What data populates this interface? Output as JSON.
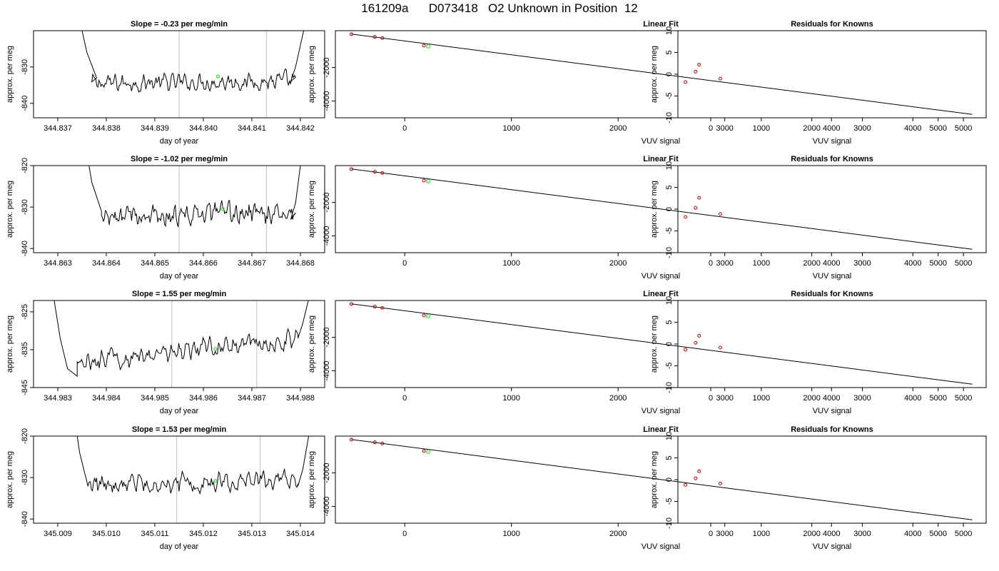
{
  "title": "161209a      D073418   O2 Unknown in Position  12",
  "colors": {
    "fit_line": "#000000",
    "known_points": "#cc0000",
    "unknown_point": "#33dd33",
    "window_lines": "#c8c8c8"
  },
  "chart_data": [
    {
      "type": "line",
      "title": "Slope =  -0.23  per meg/min",
      "xlabel": "day of year",
      "ylabel": "approx. per meg",
      "xlim": [
        344.8365,
        344.8425
      ],
      "ylim": [
        -844,
        -820
      ],
      "xticks": [
        "344.837",
        "344.838",
        "344.839",
        "344.840",
        "344.841",
        "344.842"
      ],
      "yticks": [
        "-840",
        "-830"
      ],
      "vlines": [
        344.8395,
        344.8413
      ],
      "trace": {
        "x_start": 344.8377,
        "x_end": 344.8419,
        "baseline": -834.5,
        "amp": 1.6,
        "left_shoulder": [
          [
            344.8373,
            -808
          ],
          [
            344.8376,
            -826
          ],
          [
            344.8378,
            -833
          ]
        ],
        "right_shoulder": [
          [
            344.8418,
            -834
          ],
          [
            344.8419,
            -830
          ],
          [
            344.8421,
            -818
          ],
          [
            344.8422,
            -808
          ]
        ],
        "points": 200,
        "trend": 0.6
      },
      "unknown_marker": {
        "x": 344.8403,
        "y": -832.6
      }
    },
    {
      "type": "scatter+line",
      "title": "Linear Fit",
      "xlabel": "VUV signal",
      "ylabel": "approx. per meg",
      "xlim": [
        -650,
        5450
      ],
      "ylim": [
        -5000,
        200
      ],
      "xticks": [
        "0",
        "1000",
        "2000",
        "3000",
        "4000",
        "5000"
      ],
      "yticks": [
        "-4000",
        "-2000"
      ],
      "fit": [
        [
          -500,
          0
        ],
        [
          5320,
          -4800
        ]
      ],
      "knowns": [
        [
          -500,
          -10
        ],
        [
          -280,
          -170
        ],
        [
          -210,
          -240
        ],
        [
          180,
          -690
        ]
      ],
      "unknown": [
        220,
        -730
      ]
    },
    {
      "type": "scatter",
      "title": "Residuals for Knowns",
      "xlabel": "VUV signal",
      "ylabel": "approx. per meg",
      "xlim": [
        -650,
        5450
      ],
      "ylim": [
        -10,
        10
      ],
      "xticks": [
        "0",
        "1000",
        "2000",
        "3000",
        "4000",
        "5000"
      ],
      "yticks": [
        "-10",
        "-5",
        "0",
        "5",
        "10"
      ],
      "points": [
        [
          -500,
          -1.8
        ],
        [
          -300,
          0.6
        ],
        [
          -230,
          2.2
        ],
        [
          190,
          -1.0
        ]
      ]
    },
    {
      "type": "line",
      "title": "Slope =  -1.02  per meg/min",
      "xlabel": "day of year",
      "ylabel": "approx. per meg",
      "xlim": [
        344.8625,
        344.8685
      ],
      "ylim": [
        -841,
        -820
      ],
      "xticks": [
        "344.863",
        "344.864",
        "344.865",
        "344.866",
        "344.867",
        "344.868"
      ],
      "yticks": [
        "-840",
        "-830",
        "-820"
      ],
      "vlines": [
        344.8655,
        344.8673
      ],
      "trace": {
        "x_start": 344.8639,
        "x_end": 344.8679,
        "baseline": -832.5,
        "amp": 1.7,
        "left_shoulder": [
          [
            344.8635,
            -810
          ],
          [
            344.8637,
            -824
          ],
          [
            344.8639,
            -831
          ]
        ],
        "right_shoulder": [
          [
            344.8678,
            -833
          ],
          [
            344.8679,
            -829
          ],
          [
            344.868,
            -820
          ],
          [
            344.8682,
            -810
          ]
        ],
        "points": 200,
        "trend": 1.2
      },
      "unknown_marker": {
        "x": 344.8664,
        "y": -830.5
      }
    },
    {
      "type": "scatter+line",
      "title": "Linear Fit",
      "xlabel": "VUV signal",
      "ylabel": "approx. per meg",
      "xlim": [
        -650,
        5450
      ],
      "ylim": [
        -5000,
        200
      ],
      "xticks": [
        "0",
        "1000",
        "2000",
        "3000",
        "4000",
        "5000"
      ],
      "yticks": [
        "-4000",
        "-2000"
      ],
      "fit": [
        [
          -500,
          0
        ],
        [
          5320,
          -4800
        ]
      ],
      "knowns": [
        [
          -500,
          -10
        ],
        [
          -280,
          -170
        ],
        [
          -210,
          -240
        ],
        [
          180,
          -690
        ]
      ],
      "unknown": [
        220,
        -730
      ]
    },
    {
      "type": "scatter",
      "title": "Residuals for Knowns",
      "xlabel": "VUV signal",
      "ylabel": "approx. per meg",
      "xlim": [
        -650,
        5450
      ],
      "ylim": [
        -10,
        10
      ],
      "xticks": [
        "0",
        "1000",
        "2000",
        "3000",
        "4000",
        "5000"
      ],
      "yticks": [
        "-10",
        "-5",
        "0",
        "5",
        "10"
      ],
      "points": [
        [
          -500,
          -1.8
        ],
        [
          -300,
          0.3
        ],
        [
          -230,
          2.6
        ],
        [
          190,
          -1.1
        ]
      ]
    },
    {
      "type": "line",
      "title": "Slope =  1.55  per meg/min",
      "xlabel": "day of year",
      "ylabel": "approx. per meg",
      "xlim": [
        344.9825,
        344.9885
      ],
      "ylim": [
        -845,
        -822
      ],
      "xticks": [
        "344.983",
        "344.984",
        "344.985",
        "344.986",
        "344.987",
        "344.988"
      ],
      "yticks": [
        "-845",
        "-835",
        "-825"
      ],
      "vlines": [
        344.98535,
        344.9871
      ],
      "trace": {
        "x_start": 344.9834,
        "x_end": 344.98795,
        "baseline": -838.5,
        "amp": 1.8,
        "left_shoulder": [
          [
            344.9829,
            -820
          ],
          [
            344.98305,
            -832
          ],
          [
            344.9832,
            -840
          ],
          [
            344.9834,
            -842
          ]
        ],
        "right_shoulder": [
          [
            344.98795,
            -832
          ],
          [
            344.98805,
            -828
          ],
          [
            344.9882,
            -820
          ]
        ],
        "points": 200,
        "trend": 6.5
      },
      "unknown_marker": {
        "x": 344.98625,
        "y": -834.8
      }
    },
    {
      "type": "scatter+line",
      "title": "Linear Fit",
      "xlabel": "VUV signal",
      "ylabel": "approx. per meg",
      "xlim": [
        -650,
        5450
      ],
      "ylim": [
        -5000,
        200
      ],
      "xticks": [
        "0",
        "1000",
        "2000",
        "3000",
        "4000",
        "5000"
      ],
      "yticks": [
        "-4000",
        "-2000"
      ],
      "fit": [
        [
          -500,
          0
        ],
        [
          5320,
          -4800
        ]
      ],
      "knowns": [
        [
          -500,
          -10
        ],
        [
          -280,
          -170
        ],
        [
          -210,
          -240
        ],
        [
          180,
          -690
        ]
      ],
      "unknown": [
        220,
        -730
      ]
    },
    {
      "type": "scatter",
      "title": "Residuals for Knowns",
      "xlabel": "VUV signal",
      "ylabel": "approx. per meg",
      "xlim": [
        -650,
        5450
      ],
      "ylim": [
        -10,
        10
      ],
      "xticks": [
        "0",
        "1000",
        "2000",
        "3000",
        "4000",
        "5000"
      ],
      "yticks": [
        "-10",
        "-5",
        "0",
        "5",
        "10"
      ],
      "points": [
        [
          -500,
          -1.3
        ],
        [
          -300,
          0.3
        ],
        [
          -230,
          1.9
        ],
        [
          190,
          -0.8
        ]
      ]
    },
    {
      "type": "line",
      "title": "Slope =  1.53  per meg/min",
      "xlabel": "day of year",
      "ylabel": "approx. per meg",
      "xlim": [
        345.0085,
        345.0145
      ],
      "ylim": [
        -841,
        -820
      ],
      "xticks": [
        "345.009",
        "345.010",
        "345.011",
        "345.012",
        "345.013",
        "345.014"
      ],
      "yticks": [
        "-840",
        "-830",
        "-820"
      ],
      "vlines": [
        345.01145,
        345.01317
      ],
      "trace": {
        "x_start": 345.00965,
        "x_end": 345.01395,
        "baseline": -832,
        "amp": 1.6,
        "left_shoulder": [
          [
            345.0093,
            -812
          ],
          [
            345.00945,
            -824
          ],
          [
            345.00962,
            -832
          ]
        ],
        "right_shoulder": [
          [
            345.01395,
            -832
          ],
          [
            345.01405,
            -828
          ],
          [
            345.0142,
            -818
          ],
          [
            345.0143,
            -812
          ]
        ],
        "points": 200,
        "trend": 1.5
      },
      "unknown_marker": {
        "x": 345.01225,
        "y": -830.8
      }
    },
    {
      "type": "scatter+line",
      "title": "Linear Fit",
      "xlabel": "VUV signal",
      "ylabel": "approx. per meg",
      "xlim": [
        -650,
        5450
      ],
      "ylim": [
        -5000,
        200
      ],
      "xticks": [
        "0",
        "1000",
        "2000",
        "3000",
        "4000",
        "5000"
      ],
      "yticks": [
        "-4000",
        "-2000"
      ],
      "fit": [
        [
          -500,
          0
        ],
        [
          5320,
          -4800
        ]
      ],
      "knowns": [
        [
          -500,
          -10
        ],
        [
          -280,
          -170
        ],
        [
          -210,
          -240
        ],
        [
          180,
          -690
        ]
      ],
      "unknown": [
        220,
        -730
      ]
    },
    {
      "type": "scatter",
      "title": "Residuals for Knowns",
      "xlabel": "VUV signal",
      "ylabel": "approx. per meg",
      "xlim": [
        -650,
        5450
      ],
      "ylim": [
        -10,
        10
      ],
      "xticks": [
        "0",
        "1000",
        "2000",
        "3000",
        "4000",
        "5000"
      ],
      "yticks": [
        "-10",
        "-5",
        "0",
        "5",
        "10"
      ],
      "points": [
        [
          -500,
          -1.2
        ],
        [
          -300,
          0.3
        ],
        [
          -230,
          1.9
        ],
        [
          190,
          -0.9
        ]
      ]
    }
  ]
}
